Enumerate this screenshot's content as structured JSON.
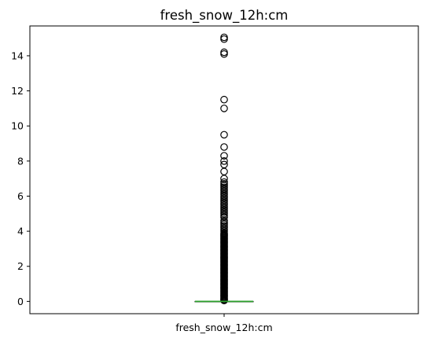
{
  "chart_data": {
    "type": "box",
    "title": "fresh_snow_12h:cm",
    "categories": [
      "fresh_snow_12h:cm"
    ],
    "ylim": [
      -0.7,
      15.7
    ],
    "yticks": [
      0,
      2,
      4,
      6,
      8,
      10,
      12,
      14
    ],
    "ytick_labels": [
      "0",
      "2",
      "4",
      "6",
      "8",
      "10",
      "12",
      "14"
    ],
    "grid": false,
    "legend": "none",
    "box": {
      "min": 0,
      "q1": 0,
      "median": 0,
      "q3": 0,
      "max": 0
    },
    "outliers": [
      0.05,
      0.1,
      0.15,
      0.2,
      0.25,
      0.3,
      0.35,
      0.4,
      0.45,
      0.5,
      0.55,
      0.6,
      0.65,
      0.7,
      0.75,
      0.8,
      0.85,
      0.9,
      0.95,
      1.0,
      1.05,
      1.1,
      1.15,
      1.2,
      1.25,
      1.3,
      1.35,
      1.4,
      1.45,
      1.5,
      1.55,
      1.6,
      1.65,
      1.7,
      1.75,
      1.8,
      1.85,
      1.9,
      1.95,
      2.0,
      2.05,
      2.1,
      2.15,
      2.2,
      2.25,
      2.3,
      2.35,
      2.4,
      2.45,
      2.5,
      2.55,
      2.6,
      2.65,
      2.7,
      2.75,
      2.8,
      2.85,
      2.9,
      2.95,
      3.0,
      3.05,
      3.1,
      3.15,
      3.2,
      3.25,
      3.3,
      3.35,
      3.4,
      3.45,
      3.5,
      3.55,
      3.6,
      3.65,
      3.7,
      3.75,
      3.8,
      3.85,
      3.9,
      4.0,
      4.1,
      4.2,
      4.3,
      4.4,
      4.5,
      4.6,
      4.8,
      4.9,
      5.0,
      5.1,
      5.2,
      5.3,
      5.4,
      5.5,
      5.6,
      5.7,
      5.8,
      5.9,
      6.0,
      6.1,
      6.2,
      6.3,
      6.4,
      6.5,
      6.6,
      6.7,
      6.8,
      7.0,
      7.4,
      7.8,
      8.0,
      8.3,
      8.8,
      9.5,
      11.0,
      11.5,
      14.1,
      14.2,
      14.95,
      15.05
    ],
    "colors": {
      "median": "#2ca02c",
      "box": "#000000",
      "flier_edge": "#000000"
    }
  }
}
